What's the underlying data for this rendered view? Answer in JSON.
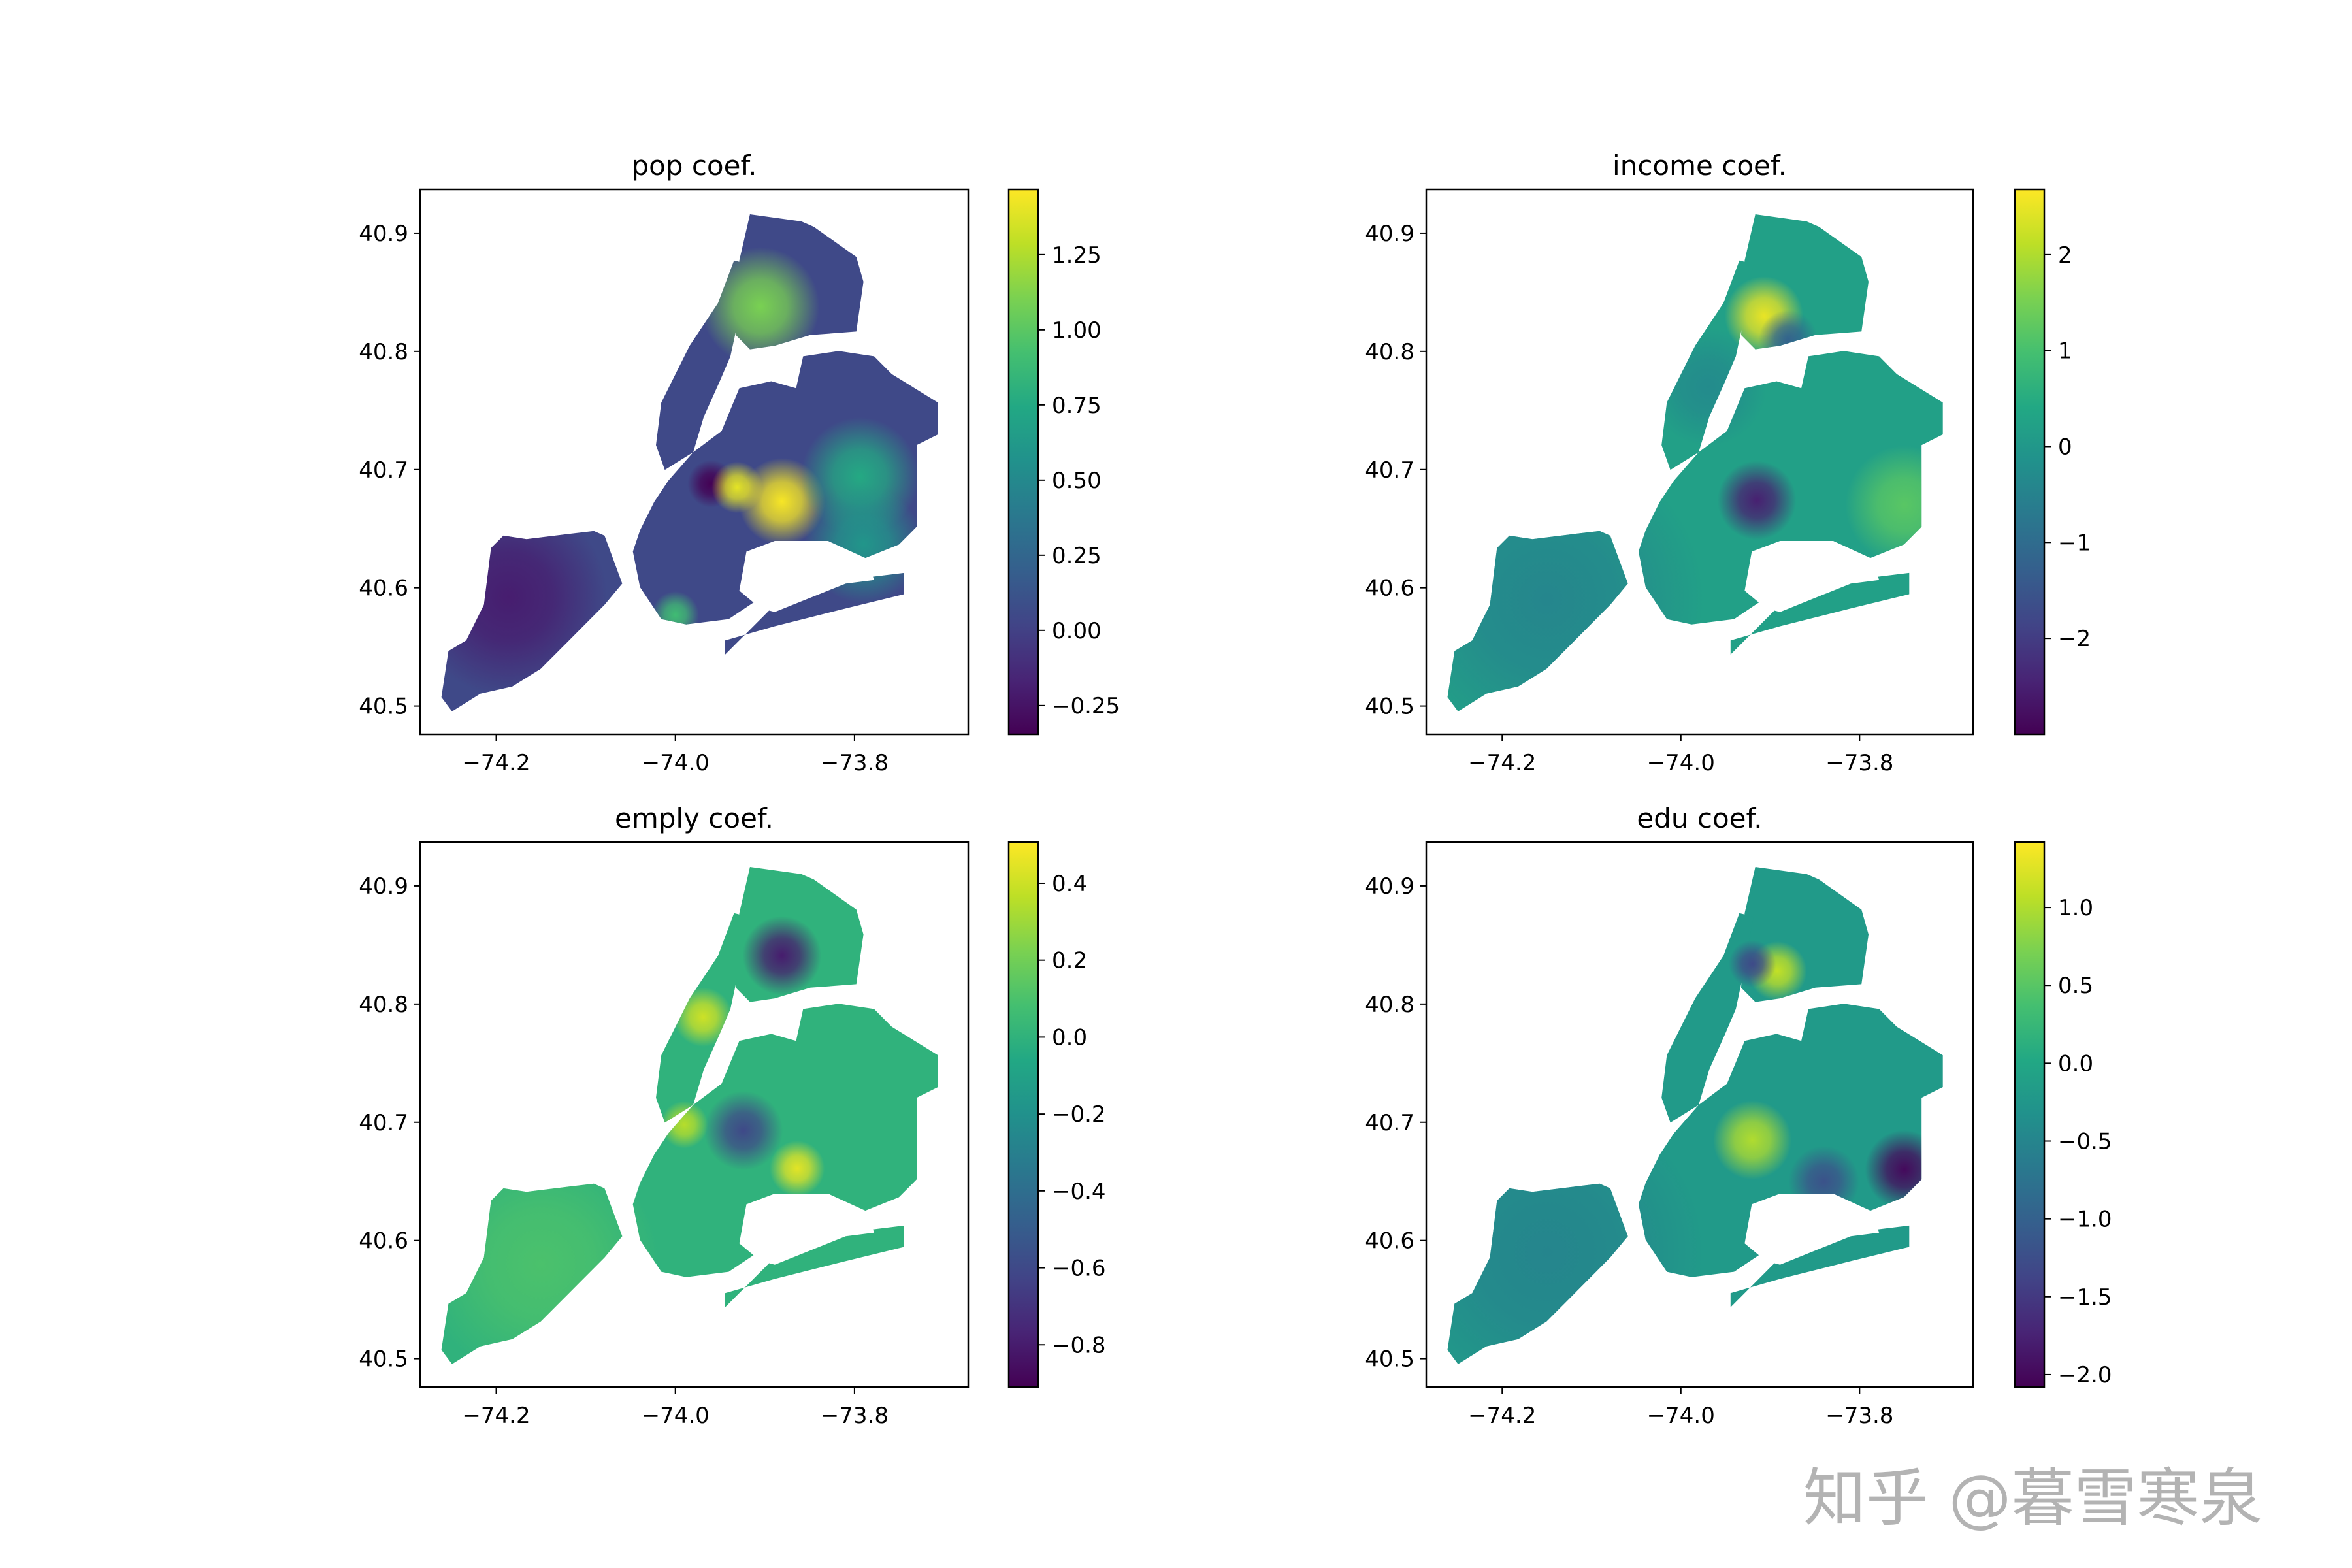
{
  "watermark": "知乎 @暮雪寒泉",
  "chart_data": [
    {
      "type": "heatmap",
      "subtype": "choropleth",
      "title": "pop coef.",
      "colormap": "viridis",
      "xlim": [
        -74.285,
        -73.673
      ],
      "ylim": [
        40.476,
        40.937
      ],
      "xticks": [
        -74.2,
        -74.0,
        -73.8
      ],
      "xtick_labels": [
        "−74.2",
        "−74.0",
        "−73.8"
      ],
      "yticks": [
        40.5,
        40.6,
        40.7,
        40.8,
        40.9
      ],
      "ytick_labels": [
        "40.5",
        "40.6",
        "40.7",
        "40.8",
        "40.9"
      ],
      "colorbar": {
        "range": [
          -0.346,
          1.467
        ],
        "ticks": [
          -0.25,
          0.0,
          0.25,
          0.5,
          0.75,
          1.0,
          1.25
        ],
        "tick_labels": [
          "−0.25",
          "0.00",
          "0.25",
          "0.50",
          "0.75",
          "1.00",
          "1.25"
        ]
      },
      "base_value": 0.05,
      "hotspots": [
        {
          "lon": -74.186,
          "lat": 40.592,
          "value": -0.2,
          "spread": 0.05
        },
        {
          "lon": -73.905,
          "lat": 40.838,
          "value": 1.1,
          "spread": 0.03
        },
        {
          "lon": -73.96,
          "lat": 40.688,
          "value": -0.35,
          "spread": 0.012
        },
        {
          "lon": -73.931,
          "lat": 40.685,
          "value": 1.4,
          "spread": 0.013
        },
        {
          "lon": -73.881,
          "lat": 40.673,
          "value": 1.45,
          "spread": 0.022
        },
        {
          "lon": -73.794,
          "lat": 40.694,
          "value": 0.75,
          "spread": 0.03
        },
        {
          "lon": -73.79,
          "lat": 40.637,
          "value": 0.6,
          "spread": 0.03
        },
        {
          "lon": -74.0,
          "lat": 40.577,
          "value": 0.9,
          "spread": 0.012
        }
      ]
    },
    {
      "type": "heatmap",
      "subtype": "choropleth",
      "title": "income coef.",
      "colormap": "viridis",
      "xlim": [
        -74.285,
        -73.673
      ],
      "ylim": [
        40.476,
        40.937
      ],
      "xticks": [
        -74.2,
        -74.0,
        -73.8
      ],
      "xtick_labels": [
        "−74.2",
        "−74.0",
        "−73.8"
      ],
      "yticks": [
        40.5,
        40.6,
        40.7,
        40.8,
        40.9
      ],
      "ytick_labels": [
        "40.5",
        "40.6",
        "40.7",
        "40.8",
        "40.9"
      ],
      "colorbar": {
        "range": [
          -3.0,
          2.68
        ],
        "ticks": [
          -2,
          -1,
          0,
          1,
          2
        ],
        "tick_labels": [
          "−2",
          "−1",
          "0",
          "1",
          "2"
        ]
      },
      "base_value": 0.2,
      "hotspots": [
        {
          "lon": -74.15,
          "lat": 40.59,
          "value": -0.4,
          "spread": 0.08
        },
        {
          "lon": -73.97,
          "lat": 40.77,
          "value": -0.3,
          "spread": 0.03
        },
        {
          "lon": -73.907,
          "lat": 40.83,
          "value": 2.5,
          "spread": 0.02
        },
        {
          "lon": -73.88,
          "lat": 40.81,
          "value": -1.2,
          "spread": 0.015
        },
        {
          "lon": -73.915,
          "lat": 40.674,
          "value": -2.5,
          "spread": 0.02
        },
        {
          "lon": -73.75,
          "lat": 40.67,
          "value": 1.2,
          "spread": 0.03
        }
      ]
    },
    {
      "type": "heatmap",
      "subtype": "choropleth",
      "title": "emply coef.",
      "colormap": "viridis",
      "xlim": [
        -74.285,
        -73.673
      ],
      "ylim": [
        40.476,
        40.937
      ],
      "xticks": [
        -74.2,
        -74.0,
        -73.8
      ],
      "xtick_labels": [
        "−74.2",
        "−74.0",
        "−73.8"
      ],
      "yticks": [
        40.5,
        40.6,
        40.7,
        40.8,
        40.9
      ],
      "ytick_labels": [
        "40.5",
        "40.6",
        "40.7",
        "40.8",
        "40.9"
      ],
      "colorbar": {
        "range": [
          -0.91,
          0.507
        ],
        "ticks": [
          -0.8,
          -0.6,
          -0.4,
          -0.2,
          0.0,
          0.2,
          0.4
        ],
        "tick_labels": [
          "−0.8",
          "−0.6",
          "−0.4",
          "−0.2",
          "0.0",
          "0.2",
          "0.4"
        ]
      },
      "base_value": 0.0,
      "hotspots": [
        {
          "lon": -74.15,
          "lat": 40.58,
          "value": 0.1,
          "spread": 0.06
        },
        {
          "lon": -73.881,
          "lat": 40.841,
          "value": -0.8,
          "spread": 0.02
        },
        {
          "lon": -73.969,
          "lat": 40.789,
          "value": 0.4,
          "spread": 0.015
        },
        {
          "lon": -73.864,
          "lat": 40.661,
          "value": 0.45,
          "spread": 0.014
        },
        {
          "lon": -73.924,
          "lat": 40.693,
          "value": -0.6,
          "spread": 0.02
        },
        {
          "lon": -73.99,
          "lat": 40.698,
          "value": 0.35,
          "spread": 0.012
        }
      ]
    },
    {
      "type": "heatmap",
      "subtype": "choropleth",
      "title": "edu coef.",
      "colormap": "viridis",
      "xlim": [
        -74.285,
        -73.673
      ],
      "ylim": [
        40.476,
        40.937
      ],
      "xticks": [
        -74.2,
        -74.0,
        -73.8
      ],
      "xtick_labels": [
        "−74.2",
        "−74.0",
        "−73.8"
      ],
      "yticks": [
        40.5,
        40.6,
        40.7,
        40.8,
        40.9
      ],
      "ytick_labels": [
        "40.5",
        "40.6",
        "40.7",
        "40.8",
        "40.9"
      ],
      "colorbar": {
        "range": [
          -2.08,
          1.42
        ],
        "ticks": [
          -2.0,
          -1.5,
          -1.0,
          -0.5,
          0.0,
          0.5,
          1.0
        ],
        "tick_labels": [
          "−2.0",
          "−1.5",
          "−1.0",
          "−0.5",
          "0.0",
          "0.5",
          "1.0"
        ]
      },
      "base_value": -0.2,
      "hotspots": [
        {
          "lon": -74.15,
          "lat": 40.59,
          "value": -0.5,
          "spread": 0.08
        },
        {
          "lon": -73.892,
          "lat": 40.828,
          "value": 1.1,
          "spread": 0.015
        },
        {
          "lon": -73.92,
          "lat": 40.834,
          "value": -1.3,
          "spread": 0.012
        },
        {
          "lon": -73.92,
          "lat": 40.685,
          "value": 1.0,
          "spread": 0.02
        },
        {
          "lon": -73.75,
          "lat": 40.66,
          "value": -2.0,
          "spread": 0.02
        },
        {
          "lon": -73.84,
          "lat": 40.65,
          "value": -1.2,
          "spread": 0.018
        }
      ]
    }
  ]
}
